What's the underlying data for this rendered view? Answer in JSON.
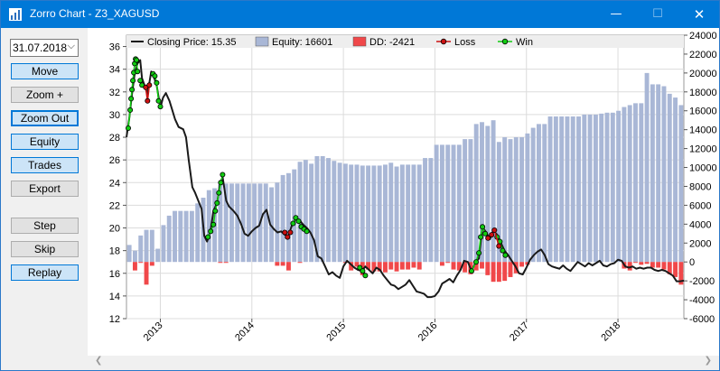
{
  "window": {
    "title": "Zorro Chart - Z3_XAGUSD",
    "minimize_glyph": "—",
    "maximize_glyph": "☐",
    "close_glyph": "✕",
    "icon": "zorro-app-icon"
  },
  "sidebar": {
    "date_value": "31.07.2018",
    "buttons": [
      "Move",
      "Zoom +",
      "Zoom Out",
      "Equity",
      "Trades",
      "Export",
      "Step",
      "Skip",
      "Replay"
    ]
  },
  "colors": {
    "equity": "#a9b7d6",
    "drawdown": "#f0484a",
    "price": "#1a1a1a",
    "loss": "#cc1111",
    "win": "#11cc11",
    "grid": "#dcdcdc"
  },
  "chart_data": {
    "type": "bar",
    "legend": {
      "price_label": "Closing Price: 15.35",
      "equity_label": "Equity: 16601",
      "dd_label": "DD: -2421",
      "loss_label": "Loss",
      "win_label": "Win",
      "placement": "top"
    },
    "x_ticks": [
      "2013",
      "2014",
      "2015",
      "2016",
      "2017",
      "2018"
    ],
    "x_tick_pos": [
      2013.0,
      2014.0,
      2015.0,
      2016.0,
      2017.0,
      2018.0
    ],
    "xlim": [
      2012.63,
      2018.72
    ],
    "left_axis": {
      "ylim": [
        12,
        37
      ],
      "ticks": [
        "12",
        "14",
        "16",
        "18",
        "20",
        "22",
        "24",
        "26",
        "28",
        "30",
        "32",
        "34",
        "36"
      ],
      "tick_values": [
        12,
        14,
        16,
        18,
        20,
        22,
        24,
        26,
        28,
        30,
        32,
        34,
        36
      ]
    },
    "right_axis": {
      "ylim": [
        -6000,
        24000
      ],
      "ticks": [
        "-6000",
        "-4000",
        "-2000",
        "0",
        "2000",
        "4000",
        "6000",
        "8000",
        "10000",
        "12000",
        "14000",
        "16000",
        "18000",
        "20000",
        "22000",
        "24000"
      ],
      "tick_values": [
        -6000,
        -4000,
        -2000,
        0,
        2000,
        4000,
        6000,
        8000,
        10000,
        12000,
        14000,
        16000,
        18000,
        20000,
        22000,
        24000
      ]
    },
    "equity": [
      1800,
      1200,
      2800,
      3400,
      3400,
      1400,
      3900,
      4900,
      5400,
      5400,
      5400,
      5400,
      6200,
      6800,
      7600,
      7800,
      8200,
      8300,
      8300,
      8300,
      8300,
      8300,
      8300,
      8300,
      8300,
      7900,
      8400,
      9200,
      9400,
      9800,
      10600,
      10800,
      10400,
      11200,
      11200,
      11000,
      10700,
      10500,
      10400,
      10300,
      10300,
      10200,
      10200,
      10200,
      10200,
      10300,
      10500,
      10100,
      10300,
      10300,
      10300,
      10300,
      11000,
      11000,
      12400,
      12400,
      12400,
      12400,
      12400,
      13000,
      13000,
      14600,
      14800,
      14400,
      15000,
      12700,
      13200,
      13000,
      13200,
      13200,
      13600,
      14200,
      14600,
      14600,
      15400,
      15400,
      15400,
      15400,
      15400,
      15400,
      15600,
      15600,
      15600,
      15700,
      15800,
      15800,
      16000,
      16400,
      16600,
      16800,
      16800,
      20000,
      18800,
      18800,
      18600,
      17800,
      17400,
      16600
    ],
    "drawdown": [
      0,
      -900,
      -100,
      -2400,
      -400,
      0,
      0,
      0,
      0,
      0,
      0,
      0,
      0,
      0,
      0,
      0,
      -100,
      -100,
      0,
      0,
      0,
      0,
      0,
      0,
      0,
      0,
      -400,
      -400,
      -900,
      0,
      -100,
      0,
      0,
      0,
      0,
      0,
      0,
      0,
      -100,
      -900,
      -500,
      -1400,
      -800,
      -1000,
      -1000,
      -1100,
      -800,
      -1000,
      -800,
      -800,
      -600,
      -800,
      0,
      0,
      0,
      -400,
      -100,
      -800,
      -900,
      -1100,
      -1300,
      -900,
      -700,
      -1400,
      -2100,
      -2100,
      -2000,
      -1600,
      -1200,
      -500,
      -300,
      0,
      0,
      0,
      0,
      0,
      0,
      0,
      0,
      0,
      0,
      0,
      0,
      0,
      0,
      0,
      0,
      -700,
      -900,
      -100,
      -300,
      -200,
      -600,
      -600,
      -800,
      -1300,
      -1600,
      -2400
    ],
    "price": [
      [
        2012.63,
        28.0
      ],
      [
        2012.66,
        29.6
      ],
      [
        2012.69,
        31.8
      ],
      [
        2012.72,
        33.6
      ],
      [
        2012.75,
        34.5
      ],
      [
        2012.78,
        34.8
      ],
      [
        2012.8,
        33.2
      ],
      [
        2012.83,
        32.5
      ],
      [
        2012.86,
        31.8
      ],
      [
        2012.9,
        33.8
      ],
      [
        2012.93,
        33.3
      ],
      [
        2012.96,
        32.6
      ],
      [
        2013.0,
        30.6
      ],
      [
        2013.03,
        31.5
      ],
      [
        2013.06,
        31.9
      ],
      [
        2013.1,
        31.2
      ],
      [
        2013.13,
        30.4
      ],
      [
        2013.16,
        29.6
      ],
      [
        2013.2,
        28.9
      ],
      [
        2013.25,
        28.7
      ],
      [
        2013.28,
        28.0
      ],
      [
        2013.31,
        26.0
      ],
      [
        2013.35,
        23.6
      ],
      [
        2013.38,
        23.1
      ],
      [
        2013.42,
        22.3
      ],
      [
        2013.45,
        21.7
      ],
      [
        2013.48,
        19.3
      ],
      [
        2013.51,
        18.8
      ],
      [
        2013.55,
        19.8
      ],
      [
        2013.58,
        21.5
      ],
      [
        2013.62,
        22.2
      ],
      [
        2013.65,
        23.8
      ],
      [
        2013.68,
        24.5
      ],
      [
        2013.72,
        22.4
      ],
      [
        2013.75,
        21.9
      ],
      [
        2013.8,
        21.5
      ],
      [
        2013.84,
        21.1
      ],
      [
        2013.88,
        20.4
      ],
      [
        2013.92,
        19.5
      ],
      [
        2013.96,
        19.3
      ],
      [
        2014.0,
        19.7
      ],
      [
        2014.04,
        20.0
      ],
      [
        2014.08,
        20.2
      ],
      [
        2014.12,
        21.2
      ],
      [
        2014.16,
        21.6
      ],
      [
        2014.2,
        20.3
      ],
      [
        2014.24,
        19.9
      ],
      [
        2014.28,
        19.6
      ],
      [
        2014.32,
        19.7
      ],
      [
        2014.36,
        19.4
      ],
      [
        2014.4,
        19.3
      ],
      [
        2014.44,
        20.3
      ],
      [
        2014.48,
        20.8
      ],
      [
        2014.52,
        20.7
      ],
      [
        2014.56,
        20.3
      ],
      [
        2014.6,
        20.0
      ],
      [
        2014.64,
        19.6
      ],
      [
        2014.68,
        18.9
      ],
      [
        2014.72,
        17.5
      ],
      [
        2014.76,
        17.3
      ],
      [
        2014.8,
        16.6
      ],
      [
        2014.84,
        15.9
      ],
      [
        2014.88,
        16.1
      ],
      [
        2014.92,
        15.8
      ],
      [
        2014.96,
        15.6
      ],
      [
        2015.0,
        16.6
      ],
      [
        2015.04,
        17.1
      ],
      [
        2015.08,
        16.8
      ],
      [
        2015.12,
        16.5
      ],
      [
        2015.16,
        16.3
      ],
      [
        2015.2,
        16.2
      ],
      [
        2015.24,
        16.6
      ],
      [
        2015.28,
        16.3
      ],
      [
        2015.32,
        16.0
      ],
      [
        2015.36,
        16.5
      ],
      [
        2015.4,
        16.3
      ],
      [
        2015.44,
        15.8
      ],
      [
        2015.48,
        15.4
      ],
      [
        2015.52,
        15.0
      ],
      [
        2015.56,
        14.9
      ],
      [
        2015.6,
        14.6
      ],
      [
        2015.64,
        14.8
      ],
      [
        2015.68,
        15.0
      ],
      [
        2015.72,
        15.4
      ],
      [
        2015.76,
        14.9
      ],
      [
        2015.8,
        14.4
      ],
      [
        2015.84,
        14.3
      ],
      [
        2015.88,
        14.2
      ],
      [
        2015.92,
        13.9
      ],
      [
        2015.96,
        13.9
      ],
      [
        2016.0,
        14.0
      ],
      [
        2016.04,
        14.4
      ],
      [
        2016.08,
        15.1
      ],
      [
        2016.12,
        15.3
      ],
      [
        2016.16,
        15.5
      ],
      [
        2016.2,
        15.2
      ],
      [
        2016.24,
        15.8
      ],
      [
        2016.28,
        16.3
      ],
      [
        2016.32,
        17.1
      ],
      [
        2016.36,
        17.0
      ],
      [
        2016.4,
        16.2
      ],
      [
        2016.44,
        16.9
      ],
      [
        2016.48,
        17.3
      ],
      [
        2016.52,
        20.1
      ],
      [
        2016.56,
        19.6
      ],
      [
        2016.6,
        19.0
      ],
      [
        2016.64,
        19.8
      ],
      [
        2016.68,
        19.4
      ],
      [
        2016.72,
        18.7
      ],
      [
        2016.76,
        18.0
      ],
      [
        2016.8,
        17.6
      ],
      [
        2016.84,
        17.1
      ],
      [
        2016.88,
        16.6
      ],
      [
        2016.92,
        16.0
      ],
      [
        2016.96,
        15.9
      ],
      [
        2017.0,
        16.5
      ],
      [
        2017.04,
        17.2
      ],
      [
        2017.08,
        17.6
      ],
      [
        2017.12,
        17.9
      ],
      [
        2017.16,
        18.1
      ],
      [
        2017.2,
        17.6
      ],
      [
        2017.24,
        16.8
      ],
      [
        2017.28,
        16.6
      ],
      [
        2017.32,
        16.5
      ],
      [
        2017.36,
        16.4
      ],
      [
        2017.4,
        16.7
      ],
      [
        2017.44,
        16.4
      ],
      [
        2017.48,
        16.2
      ],
      [
        2017.52,
        16.6
      ],
      [
        2017.56,
        17.0
      ],
      [
        2017.6,
        16.8
      ],
      [
        2017.64,
        16.6
      ],
      [
        2017.68,
        16.9
      ],
      [
        2017.72,
        16.7
      ],
      [
        2017.76,
        16.9
      ],
      [
        2017.8,
        17.1
      ],
      [
        2017.84,
        16.7
      ],
      [
        2017.88,
        16.6
      ],
      [
        2017.92,
        16.8
      ],
      [
        2017.96,
        16.9
      ],
      [
        2018.0,
        17.2
      ],
      [
        2018.04,
        17.1
      ],
      [
        2018.08,
        16.6
      ],
      [
        2018.12,
        16.5
      ],
      [
        2018.16,
        16.6
      ],
      [
        2018.2,
        16.4
      ],
      [
        2018.24,
        16.5
      ],
      [
        2018.28,
        16.4
      ],
      [
        2018.32,
        16.5
      ],
      [
        2018.36,
        16.5
      ],
      [
        2018.4,
        16.3
      ],
      [
        2018.44,
        16.2
      ],
      [
        2018.48,
        16.3
      ],
      [
        2018.52,
        16.2
      ],
      [
        2018.56,
        16.0
      ],
      [
        2018.6,
        15.8
      ],
      [
        2018.64,
        15.3
      ],
      [
        2018.68,
        15.3
      ],
      [
        2018.72,
        15.35
      ]
    ],
    "win_segments": [
      [
        [
          2012.65,
          28.8
        ],
        [
          2012.67,
          30.4
        ],
        [
          2012.68,
          31.4
        ],
        [
          2012.69,
          32.2
        ],
        [
          2012.7,
          33.0
        ],
        [
          2012.71,
          33.7
        ],
        [
          2012.72,
          34.5
        ],
        [
          2012.73,
          34.9
        ],
        [
          2012.74,
          34.8
        ],
        [
          2012.75,
          33.8
        ]
      ],
      [
        [
          2012.78,
          33.0
        ],
        [
          2012.8,
          32.6
        ]
      ],
      [
        [
          2012.92,
          33.6
        ],
        [
          2012.94,
          33.4
        ],
        [
          2012.96,
          32.8
        ],
        [
          2012.98,
          31.2
        ],
        [
          2013.0,
          30.7
        ]
      ],
      [
        [
          2013.52,
          19.2
        ],
        [
          2013.55,
          19.7
        ],
        [
          2013.58,
          20.3
        ],
        [
          2013.6,
          21.5
        ],
        [
          2013.62,
          22.2
        ],
        [
          2013.64,
          23.1
        ],
        [
          2013.66,
          24.0
        ],
        [
          2013.68,
          24.7
        ]
      ],
      [
        [
          2014.45,
          20.4
        ],
        [
          2014.48,
          20.9
        ],
        [
          2014.51,
          20.6
        ],
        [
          2014.54,
          20.1
        ],
        [
          2014.57,
          19.9
        ],
        [
          2014.6,
          19.7
        ]
      ],
      [
        [
          2015.18,
          16.5
        ],
        [
          2015.21,
          16.2
        ],
        [
          2015.24,
          15.8
        ]
      ],
      [
        [
          2016.4,
          16.2
        ],
        [
          2016.45,
          17.0
        ],
        [
          2016.48,
          17.8
        ],
        [
          2016.5,
          19.2
        ],
        [
          2016.52,
          20.1
        ],
        [
          2016.55,
          19.5
        ]
      ],
      [
        [
          2016.68,
          19.2
        ],
        [
          2016.71,
          18.8
        ],
        [
          2016.74,
          18.0
        ],
        [
          2016.77,
          17.6
        ]
      ]
    ],
    "loss_segments": [
      [
        [
          2012.84,
          32.4
        ],
        [
          2012.86,
          31.2
        ],
        [
          2012.88,
          32.6
        ]
      ],
      [
        [
          2014.36,
          19.6
        ],
        [
          2014.39,
          19.2
        ],
        [
          2014.42,
          19.6
        ]
      ],
      [
        [
          2016.58,
          19.1
        ],
        [
          2016.62,
          19.4
        ],
        [
          2016.65,
          19.8
        ],
        [
          2016.7,
          18.4
        ]
      ]
    ]
  }
}
